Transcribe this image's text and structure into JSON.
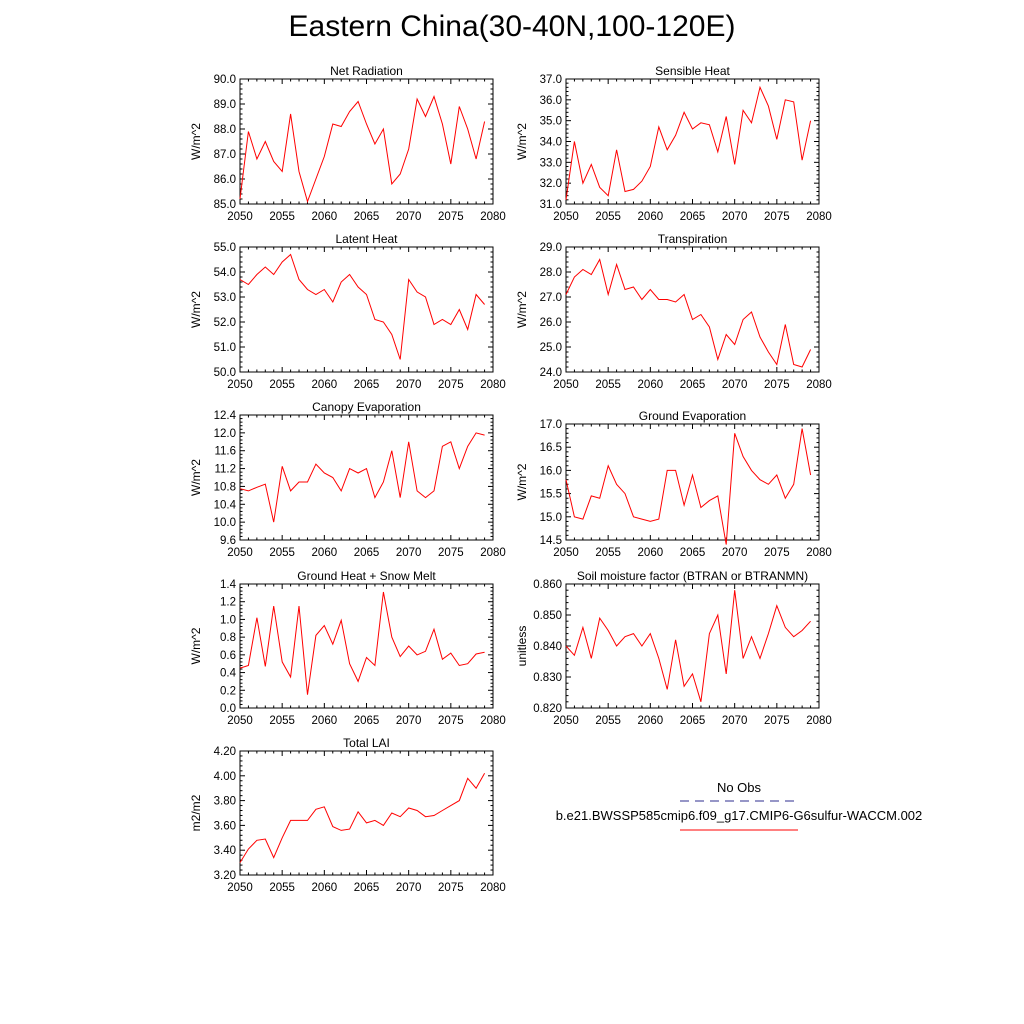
{
  "title": "Eastern China(30-40N,100-120E)",
  "colors": {
    "series": "#ff0000",
    "obs": "#2e2e8f",
    "frame": "#000000"
  },
  "x_years": [
    2050,
    2051,
    2052,
    2053,
    2054,
    2055,
    2056,
    2057,
    2058,
    2059,
    2060,
    2061,
    2062,
    2063,
    2064,
    2065,
    2066,
    2067,
    2068,
    2069,
    2070,
    2071,
    2072,
    2073,
    2074,
    2075,
    2076,
    2077,
    2078,
    2079
  ],
  "xlim": [
    2050,
    2080
  ],
  "xticks": [
    2050,
    2055,
    2060,
    2065,
    2070,
    2075,
    2080
  ],
  "legend": {
    "entries": [
      {
        "label": "No Obs",
        "style": "dashed",
        "color": "#2e2e8f"
      },
      {
        "label": "b.e21.BWSSP585cmip6.f09_g17.CMIP6-G6sulfur-WACCM.002",
        "style": "solid",
        "color": "#ff0000"
      }
    ]
  },
  "chart_data": [
    {
      "type": "line",
      "title": "Net Radiation",
      "ylabel": "W/m^2",
      "ylim": [
        85.0,
        90.0
      ],
      "yticks": [
        "85.0",
        "86.0",
        "87.0",
        "88.0",
        "89.0",
        "90.0"
      ],
      "values": [
        85.2,
        87.9,
        86.8,
        87.5,
        86.7,
        86.3,
        88.6,
        86.3,
        85.1,
        86.0,
        86.9,
        88.2,
        88.1,
        88.7,
        89.1,
        88.2,
        87.4,
        88.0,
        85.8,
        86.2,
        87.2,
        89.2,
        88.5,
        89.3,
        88.2,
        86.6,
        88.9,
        88.0,
        86.8,
        88.3
      ]
    },
    {
      "type": "line",
      "title": "Sensible Heat",
      "ylabel": "W/m^2",
      "ylim": [
        31.0,
        37.0
      ],
      "yticks": [
        "31.0",
        "32.0",
        "33.0",
        "34.0",
        "35.0",
        "36.0",
        "37.0"
      ],
      "values": [
        31.2,
        34.0,
        32.0,
        32.9,
        31.8,
        31.4,
        33.6,
        31.6,
        31.7,
        32.1,
        32.8,
        34.7,
        33.6,
        34.3,
        35.4,
        34.6,
        34.9,
        34.8,
        33.5,
        35.2,
        32.9,
        35.5,
        34.9,
        36.6,
        35.7,
        34.1,
        36.0,
        35.9,
        33.1,
        35.0
      ]
    },
    {
      "type": "line",
      "title": "Latent Heat",
      "ylabel": "W/m^2",
      "ylim": [
        50.0,
        55.0
      ],
      "yticks": [
        "50.0",
        "51.0",
        "52.0",
        "53.0",
        "54.0",
        "55.0"
      ],
      "values": [
        53.7,
        53.5,
        53.9,
        54.2,
        53.9,
        54.4,
        54.7,
        53.7,
        53.3,
        53.1,
        53.3,
        52.8,
        53.6,
        53.9,
        53.4,
        53.1,
        52.1,
        52.0,
        51.5,
        50.5,
        53.7,
        53.2,
        53.0,
        51.9,
        52.1,
        51.9,
        52.5,
        51.7,
        53.1,
        52.7
      ]
    },
    {
      "type": "line",
      "title": "Transpiration",
      "ylabel": "W/m^2",
      "ylim": [
        24.0,
        29.0
      ],
      "yticks": [
        "24.0",
        "25.0",
        "26.0",
        "27.0",
        "28.0",
        "29.0"
      ],
      "values": [
        27.1,
        27.8,
        28.1,
        27.9,
        28.5,
        27.1,
        28.3,
        27.3,
        27.4,
        26.9,
        27.3,
        26.9,
        26.9,
        26.8,
        27.1,
        26.1,
        26.3,
        25.8,
        24.5,
        25.5,
        25.1,
        26.1,
        26.4,
        25.4,
        24.8,
        24.3,
        25.9,
        24.3,
        24.2,
        24.9
      ]
    },
    {
      "type": "line",
      "title": "Canopy Evaporation",
      "ylabel": "W/m^2",
      "ylim": [
        9.6,
        12.4
      ],
      "yticks": [
        "9.6",
        "10.0",
        "10.4",
        "10.8",
        "11.2",
        "11.6",
        "12.0",
        "12.4"
      ],
      "values": [
        10.75,
        10.7,
        10.78,
        10.85,
        10.0,
        11.25,
        10.7,
        10.9,
        10.9,
        11.3,
        11.1,
        11.0,
        10.7,
        11.2,
        11.1,
        11.2,
        10.55,
        10.9,
        11.6,
        10.55,
        11.8,
        10.7,
        10.55,
        10.7,
        11.7,
        11.8,
        11.2,
        11.7,
        12.0,
        11.95
      ]
    },
    {
      "type": "line",
      "title": "Ground Evaporation",
      "ylabel": "W/m^2",
      "ylim": [
        14.5,
        17.0
      ],
      "yticks": [
        "14.5",
        "15.0",
        "15.5",
        "16.0",
        "16.5",
        "17.0"
      ],
      "values": [
        15.8,
        15.0,
        14.95,
        15.45,
        15.4,
        16.1,
        15.7,
        15.5,
        15.0,
        14.95,
        14.9,
        14.95,
        16.0,
        16.0,
        15.25,
        15.9,
        15.2,
        15.35,
        15.45,
        14.4,
        16.8,
        16.3,
        16.0,
        15.8,
        15.7,
        15.9,
        15.4,
        15.7,
        16.9,
        15.9
      ]
    },
    {
      "type": "line",
      "title": "Ground Heat + Snow Melt",
      "ylabel": "W/m^2",
      "ylim": [
        0.0,
        1.4
      ],
      "yticks": [
        "0.0",
        "0.2",
        "0.4",
        "0.6",
        "0.8",
        "1.0",
        "1.2",
        "1.4"
      ],
      "values": [
        0.45,
        0.48,
        1.02,
        0.47,
        1.15,
        0.52,
        0.35,
        1.15,
        0.15,
        0.82,
        0.93,
        0.72,
        0.99,
        0.5,
        0.3,
        0.57,
        0.48,
        1.31,
        0.8,
        0.58,
        0.7,
        0.6,
        0.64,
        0.89,
        0.55,
        0.62,
        0.48,
        0.5,
        0.61,
        0.63
      ]
    },
    {
      "type": "line",
      "title": "Soil moisture factor (BTRAN or BTRANMN)",
      "ylabel": "unitless",
      "ylim": [
        0.82,
        0.86
      ],
      "yticks": [
        "0.820",
        "0.830",
        "0.840",
        "0.850",
        "0.860"
      ],
      "values": [
        0.84,
        0.837,
        0.846,
        0.836,
        0.849,
        0.845,
        0.84,
        0.843,
        0.844,
        0.84,
        0.844,
        0.836,
        0.826,
        0.842,
        0.827,
        0.831,
        0.822,
        0.844,
        0.85,
        0.831,
        0.858,
        0.836,
        0.843,
        0.836,
        0.844,
        0.853,
        0.846,
        0.843,
        0.845,
        0.848
      ]
    },
    {
      "type": "line",
      "title": "Total LAI",
      "ylabel": "m2/m2",
      "ylim": [
        3.2,
        4.2
      ],
      "yticks": [
        "3.20",
        "3.40",
        "3.60",
        "3.80",
        "4.00",
        "4.20"
      ],
      "values": [
        3.3,
        3.41,
        3.48,
        3.49,
        3.34,
        3.5,
        3.64,
        3.64,
        3.64,
        3.73,
        3.75,
        3.59,
        3.56,
        3.57,
        3.71,
        3.62,
        3.64,
        3.6,
        3.7,
        3.67,
        3.74,
        3.72,
        3.67,
        3.68,
        3.72,
        3.76,
        3.8,
        3.98,
        3.9,
        4.02
      ]
    }
  ]
}
